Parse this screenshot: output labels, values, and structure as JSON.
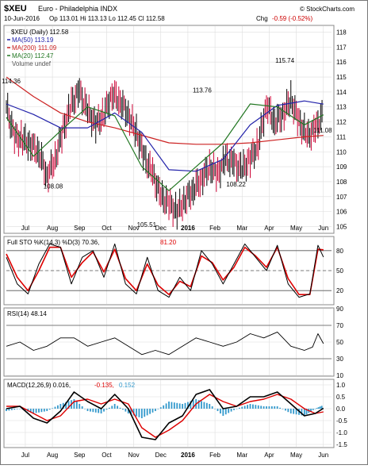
{
  "header": {
    "symbol": "$XEU",
    "name": "Euro - Philadelphia INDX",
    "date": "10-Jun-2016",
    "ohlc": "Op 113.01  Hi 113.13  Lo 112.45  Cl 112.58",
    "chg_label": "Chg",
    "chg_value": "-0.59 (-0.52%)",
    "source": "© StockCharts.com"
  },
  "legend": {
    "price": "$XEU (Daily) 112.58",
    "ma50": "MA(50) 113.19",
    "ma200": "MA(200) 111.09",
    "ma20": "MA(20) 112.47",
    "volume": "Volume undef"
  },
  "sto": {
    "label": "Full STO %K(14,3) %D(3) 70.36,",
    "d_value": "81.20"
  },
  "rsi": {
    "label": "RSI(14) 48.14"
  },
  "macd": {
    "label": "MACD(12,26,9) 0.016,",
    "signal": "-0.135,",
    "hist": "0.152"
  },
  "colors": {
    "price_bar_up": "#000000",
    "price_bar_down": "#cc0033",
    "ma50": "#2222aa",
    "ma200": "#cc2222",
    "ma20": "#227722",
    "sto_k": "#000000",
    "sto_d": "#dd0000",
    "rsi": "#000000",
    "macd": "#000000",
    "macd_signal": "#dd0000",
    "macd_hist": "#3399cc",
    "grid": "#dddddd",
    "frame": "#888888"
  },
  "chart_data": [
    {
      "type": "line",
      "title": "$XEU Euro - Philadelphia INDX (Daily)",
      "x_labels": [
        "Jul",
        "Aug",
        "Sep",
        "Oct",
        "Nov",
        "Dec",
        "2016",
        "Feb",
        "Mar",
        "Apr",
        "May",
        "Jun"
      ],
      "y_ticks": [
        105,
        106,
        107,
        108,
        109,
        110,
        111,
        112,
        113,
        114,
        115,
        116,
        117,
        118
      ],
      "ylim": [
        104.6,
        118.4
      ],
      "annotations": [
        {
          "text": "114.36",
          "x": 0.0,
          "y": 114.36
        },
        {
          "text": "108.08",
          "x": 1.55,
          "y": 108.08
        },
        {
          "text": "105.51",
          "x": 5.0,
          "y": 105.51
        },
        {
          "text": "113.76",
          "x": 7.05,
          "y": 113.76
        },
        {
          "text": "108.22",
          "x": 8.3,
          "y": 108.22
        },
        {
          "text": "115.74",
          "x": 10.1,
          "y": 115.74
        },
        {
          "text": "111.08",
          "x": 11.5,
          "y": 111.08
        }
      ],
      "series": [
        {
          "name": "$XEU (Daily)",
          "x": [
            0,
            0.3,
            0.6,
            0.9,
            1.2,
            1.5,
            1.8,
            2.1,
            2.4,
            2.7,
            3.0,
            3.3,
            3.6,
            3.9,
            4.2,
            4.5,
            4.8,
            5.1,
            5.4,
            5.7,
            6.0,
            6.3,
            6.6,
            6.9,
            7.2,
            7.5,
            7.8,
            8.1,
            8.4,
            8.7,
            9.0,
            9.3,
            9.6,
            9.9,
            10.2,
            10.5,
            10.8,
            11.1,
            11.4,
            11.7
          ],
          "values": [
            113.0,
            111.0,
            110.8,
            110.5,
            110.0,
            108.4,
            109.5,
            111.5,
            113.2,
            114.0,
            112.7,
            111.8,
            112.5,
            113.9,
            113.4,
            112.5,
            111.3,
            109.6,
            108.5,
            107.0,
            106.5,
            106.0,
            106.8,
            107.5,
            108.2,
            109.0,
            108.5,
            109.5,
            109.2,
            108.8,
            109.5,
            110.5,
            113.2,
            112.0,
            112.5,
            113.5,
            112.0,
            111.0,
            111.5,
            112.58
          ]
        },
        {
          "name": "MA(50)",
          "x": [
            0,
            1,
            2,
            3,
            4,
            5,
            6,
            7,
            8,
            9,
            10,
            11,
            11.7
          ],
          "values": [
            113.2,
            112.5,
            111.6,
            111.6,
            112.6,
            111.3,
            108.8,
            108.7,
            109.5,
            111.8,
            113.1,
            113.4,
            113.19
          ]
        },
        {
          "name": "MA(200)",
          "x": [
            0,
            1,
            2,
            3,
            4,
            5,
            6,
            7,
            8,
            9,
            10,
            11,
            11.7
          ],
          "values": [
            115.0,
            113.7,
            112.6,
            112.0,
            111.6,
            111.1,
            110.6,
            110.5,
            110.5,
            110.6,
            110.8,
            111.0,
            111.09
          ]
        },
        {
          "name": "MA(20)",
          "x": [
            0,
            1,
            2,
            3,
            4,
            5,
            6,
            7,
            8,
            9,
            10,
            11,
            11.7
          ],
          "values": [
            112.3,
            109.7,
            111.4,
            113.0,
            112.4,
            109.0,
            107.4,
            109.0,
            110.6,
            113.2,
            113.0,
            111.8,
            112.47
          ]
        }
      ]
    },
    {
      "type": "line",
      "title": "Full STO %K(14,3) %D(3)",
      "y_ticks": [
        20,
        50,
        80
      ],
      "ylim": [
        0,
        100
      ],
      "reference_lines": [
        20,
        50,
        80
      ],
      "series": [
        {
          "name": "%K",
          "x": [
            0,
            0.4,
            0.8,
            1.2,
            1.6,
            2.0,
            2.4,
            2.8,
            3.2,
            3.6,
            4.0,
            4.4,
            4.8,
            5.2,
            5.6,
            6.0,
            6.4,
            6.8,
            7.2,
            7.6,
            8.0,
            8.4,
            8.8,
            9.2,
            9.6,
            10.0,
            10.4,
            10.8,
            11.2,
            11.5,
            11.7
          ],
          "values": [
            70,
            30,
            15,
            60,
            90,
            85,
            30,
            70,
            80,
            40,
            90,
            30,
            15,
            70,
            20,
            10,
            40,
            20,
            80,
            60,
            30,
            60,
            90,
            70,
            50,
            88,
            30,
            10,
            15,
            88,
            70.36
          ]
        },
        {
          "name": "%D",
          "x": [
            0,
            0.4,
            0.8,
            1.2,
            1.6,
            2.0,
            2.4,
            2.8,
            3.2,
            3.6,
            4.0,
            4.4,
            4.8,
            5.2,
            5.6,
            6.0,
            6.4,
            6.8,
            7.2,
            7.6,
            8.0,
            8.4,
            8.8,
            9.2,
            9.6,
            10.0,
            10.4,
            10.8,
            11.2,
            11.5,
            11.7
          ],
          "values": [
            75,
            40,
            20,
            50,
            85,
            85,
            40,
            62,
            78,
            48,
            82,
            38,
            20,
            60,
            28,
            14,
            34,
            26,
            72,
            62,
            36,
            55,
            85,
            72,
            55,
            85,
            38,
            14,
            14,
            82,
            81.2
          ]
        }
      ]
    },
    {
      "type": "line",
      "title": "RSI(14)",
      "y_ticks": [
        10,
        30,
        50,
        70,
        90
      ],
      "ylim": [
        10,
        90
      ],
      "reference_lines": [
        30,
        70
      ],
      "series": [
        {
          "name": "RSI(14)",
          "x": [
            0,
            0.5,
            1.0,
            1.5,
            2.0,
            2.5,
            3.0,
            3.5,
            4.0,
            4.5,
            5.0,
            5.5,
            6.0,
            6.5,
            7.0,
            7.5,
            8.0,
            8.5,
            9.0,
            9.5,
            10.0,
            10.5,
            11.0,
            11.3,
            11.5,
            11.7
          ],
          "values": [
            45,
            50,
            40,
            45,
            55,
            55,
            45,
            50,
            55,
            45,
            35,
            40,
            35,
            45,
            55,
            50,
            45,
            50,
            60,
            55,
            62,
            45,
            40,
            44,
            60,
            48.14
          ]
        }
      ]
    },
    {
      "type": "line",
      "title": "MACD(12,26,9)",
      "y_ticks": [
        -1.5,
        -1.0,
        -0.5,
        0.0,
        0.5,
        1.0
      ],
      "ylim": [
        -1.6,
        1.2
      ],
      "series": [
        {
          "name": "MACD",
          "x": [
            0,
            0.5,
            1.0,
            1.5,
            2.0,
            2.5,
            3.0,
            3.5,
            4.0,
            4.5,
            5.0,
            5.5,
            6.0,
            6.5,
            7.0,
            7.5,
            8.0,
            8.5,
            9.0,
            9.5,
            10.0,
            10.5,
            11.0,
            11.4,
            11.7
          ],
          "values": [
            0.0,
            0.1,
            -0.4,
            -0.6,
            -0.1,
            0.7,
            0.3,
            0.0,
            0.6,
            0.0,
            -1.2,
            -1.3,
            -0.6,
            -0.3,
            0.6,
            0.8,
            0.0,
            0.1,
            0.5,
            0.5,
            0.7,
            0.2,
            -0.3,
            -0.2,
            0.016
          ]
        },
        {
          "name": "Signal",
          "x": [
            0,
            0.5,
            1.0,
            1.5,
            2.0,
            2.5,
            3.0,
            3.5,
            4.0,
            4.5,
            5.0,
            5.5,
            6.0,
            6.5,
            7.0,
            7.5,
            8.0,
            8.5,
            9.0,
            9.5,
            10.0,
            10.5,
            11.0,
            11.4,
            11.7
          ],
          "values": [
            0.1,
            0.1,
            -0.2,
            -0.5,
            -0.3,
            0.3,
            0.4,
            0.2,
            0.4,
            0.2,
            -0.8,
            -1.2,
            -0.9,
            -0.5,
            0.2,
            0.6,
            0.3,
            0.1,
            0.3,
            0.4,
            0.6,
            0.4,
            0.0,
            -0.2,
            -0.135
          ]
        }
      ]
    }
  ]
}
